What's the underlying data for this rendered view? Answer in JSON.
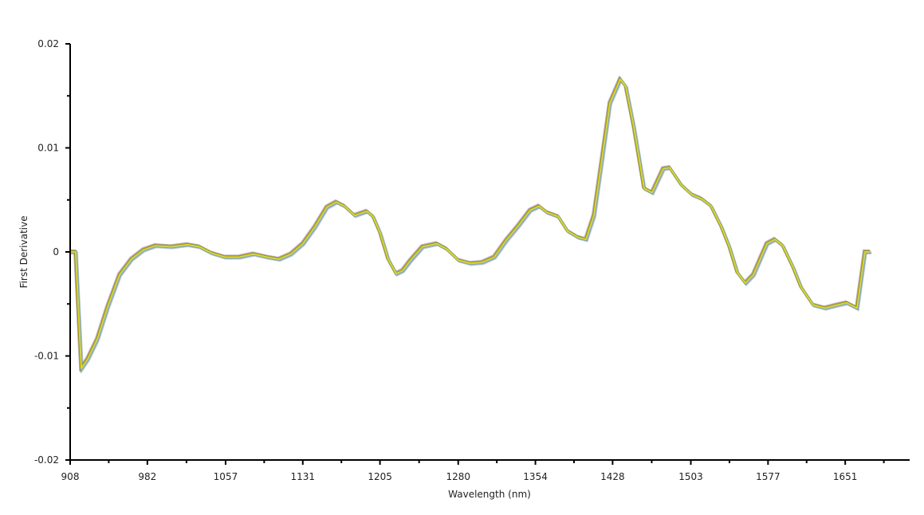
{
  "chart_data": {
    "type": "line",
    "title": "",
    "xlabel": "Wavelength (nm)",
    "ylabel": "First Derivative",
    "xlim": [
      908,
      1712
    ],
    "ylim": [
      -0.02,
      0.02
    ],
    "x_ticks": [
      908,
      982,
      1057,
      1131,
      1205,
      1280,
      1354,
      1428,
      1503,
      1577,
      1651
    ],
    "y_ticks": [
      -0.02,
      -0.01,
      0,
      0.01,
      0.02
    ],
    "y_tick_labels": [
      "-0.02",
      "-0.01",
      "0",
      "0.01",
      "0.02"
    ],
    "grid": false,
    "legend": "none",
    "line_color": "#e6d800",
    "band_colors": [
      "#8a6a9a",
      "#4aa0b0",
      "#c03040",
      "#30c060",
      "#7a9ad0"
    ],
    "series": [
      {
        "x": [
          908,
          913.3,
          918.7,
          924.8,
          934,
          943.9,
          955.4,
          966.8,
          978.3,
          989.8,
          1005,
          1020.3,
          1031.8,
          1043.3,
          1056.3,
          1070,
          1083.8,
          1096.8,
          1108.3,
          1119.7,
          1131.2,
          1142.6,
          1154.1,
          1163.3,
          1170.9,
          1180.8,
          1192.3,
          1198.4,
          1205.3,
          1212.9,
          1220.6,
          1226.7,
          1234.4,
          1245.8,
          1259.5,
          1268.7,
          1280.2,
          1291.6,
          1303.1,
          1314.6,
          1326,
          1337.5,
          1349,
          1357.4,
          1365,
          1375.9,
          1384.9,
          1394.8,
          1402.5,
          1410.1,
          1417.8,
          1425.4,
          1435.4,
          1440.7,
          1448.4,
          1458.3,
          1465.9,
          1476.6,
          1482.7,
          1494.2,
          1504.1,
          1513.3,
          1522.5,
          1532.4,
          1540,
          1547.7,
          1555.3,
          1563,
          1576,
          1583.6,
          1591.2,
          1601.2,
          1608.8,
          1620.3,
          1631.7,
          1643.2,
          1652.4,
          1662.3,
          1669.9,
          1675.3
        ],
        "y": [
          0,
          0,
          -0.0112,
          -0.0103,
          -0.0084,
          -0.0053,
          -0.0022,
          -0.0007,
          0.0002,
          0.0006,
          0.0005,
          0.0007,
          0.0005,
          -0.0001,
          -0.0005,
          -0.0005,
          -0.0002,
          -0.0005,
          -0.0007,
          -0.0002,
          0.0008,
          0.0024,
          0.0043,
          0.0048,
          0.0044,
          0.0035,
          0.0039,
          0.0034,
          0.0018,
          -0.0007,
          -0.0021,
          -0.0018,
          -0.0008,
          0.0005,
          0.0008,
          0.0003,
          -0.0008,
          -0.0011,
          -0.001,
          -0.0005,
          0.0011,
          0.0025,
          0.004,
          0.0044,
          0.0038,
          0.0034,
          0.002,
          0.0014,
          0.0012,
          0.0035,
          0.0089,
          0.0143,
          0.0166,
          0.0159,
          0.012,
          0.0061,
          0.0057,
          0.008,
          0.0081,
          0.0064,
          0.0055,
          0.0051,
          0.0044,
          0.0024,
          0.0005,
          -0.002,
          -0.003,
          -0.0022,
          0.0008,
          0.0012,
          0.0006,
          -0.0015,
          -0.0034,
          -0.0051,
          -0.0054,
          -0.0051,
          -0.0049,
          -0.0054,
          0,
          0
        ]
      }
    ]
  }
}
